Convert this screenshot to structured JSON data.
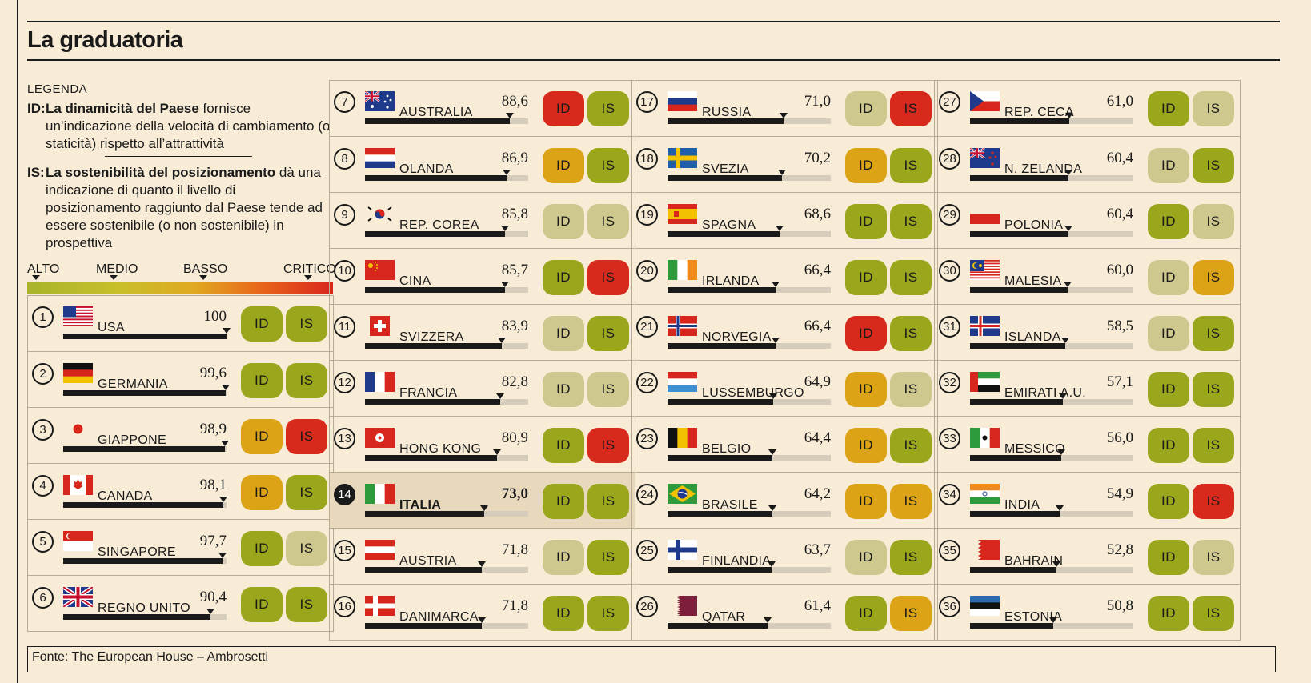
{
  "title": "La graduatoria",
  "legend": {
    "heading": "LEGENDA",
    "id_tag": "ID:",
    "id_bold": "La dinamicità del Paese",
    "id_text": " fornisce un’indicazione della velocità di cambiamento (o staticità) rispetto all’attrattività",
    "is_tag": "IS:",
    "is_bold": "La sostenibilità del posizionamento",
    "is_text": " dà una indicazione di quanto il livello di posizionamento raggiunto dal Paese tende ad essere sostenibile (o non sostenibile) in prospettiva",
    "scale": [
      "ALTO",
      "MEDIO",
      "BASSO",
      "CRITICO"
    ]
  },
  "source": "Fonte: The European House – Ambrosetti",
  "colors": {
    "alto": "#9aa61c",
    "medio": "#cfc88e",
    "basso": "#dca317",
    "critico": "#d72a1c"
  },
  "chart_data": {
    "type": "table",
    "title": "La graduatoria",
    "score_range": [
      0,
      100
    ],
    "level_scale": [
      "ALTO",
      "MEDIO",
      "BASSO",
      "CRITICO"
    ],
    "id_label": "ID",
    "is_label": "IS",
    "rows": [
      {
        "rank": "1",
        "country": "USA",
        "score_text": "100",
        "score": 100,
        "id": "ALTO",
        "is": "ALTO",
        "flag": "usa"
      },
      {
        "rank": "2",
        "country": "GERMANIA",
        "score_text": "99,6",
        "score": 99.6,
        "id": "ALTO",
        "is": "ALTO",
        "flag": "germany"
      },
      {
        "rank": "3",
        "country": "GIAPPONE",
        "score_text": "98,9",
        "score": 98.9,
        "id": "BASSO",
        "is": "CRITICO",
        "flag": "japan"
      },
      {
        "rank": "4",
        "country": "CANADA",
        "score_text": "98,1",
        "score": 98.1,
        "id": "BASSO",
        "is": "ALTO",
        "flag": "canada"
      },
      {
        "rank": "5",
        "country": "SINGAPORE",
        "score_text": "97,7",
        "score": 97.7,
        "id": "ALTO",
        "is": "MEDIO",
        "flag": "singapore"
      },
      {
        "rank": "6",
        "country": "REGNO UNITO",
        "score_text": "90,4",
        "score": 90.4,
        "id": "ALTO",
        "is": "ALTO",
        "flag": "uk"
      },
      {
        "rank": "7",
        "country": "AUSTRALIA",
        "score_text": "88,6",
        "score": 88.6,
        "id": "CRITICO",
        "is": "ALTO",
        "flag": "australia"
      },
      {
        "rank": "8",
        "country": "OLANDA",
        "score_text": "86,9",
        "score": 86.9,
        "id": "BASSO",
        "is": "ALTO",
        "flag": "netherlands"
      },
      {
        "rank": "9",
        "country": "REP. COREA",
        "score_text": "85,8",
        "score": 85.8,
        "id": "MEDIO",
        "is": "MEDIO",
        "flag": "korea"
      },
      {
        "rank": "10",
        "country": "CINA",
        "score_text": "85,7",
        "score": 85.7,
        "id": "ALTO",
        "is": "CRITICO",
        "flag": "china"
      },
      {
        "rank": "11",
        "country": "SVIZZERA",
        "score_text": "83,9",
        "score": 83.9,
        "id": "MEDIO",
        "is": "ALTO",
        "flag": "switzerland"
      },
      {
        "rank": "12",
        "country": "FRANCIA",
        "score_text": "82,8",
        "score": 82.8,
        "id": "MEDIO",
        "is": "MEDIO",
        "flag": "france"
      },
      {
        "rank": "13",
        "country": "HONG KONG",
        "score_text": "80,9",
        "score": 80.9,
        "id": "ALTO",
        "is": "CRITICO",
        "flag": "hongkong"
      },
      {
        "rank": "14",
        "country": "ITALIA",
        "score_text": "73,0",
        "score": 73.0,
        "id": "ALTO",
        "is": "ALTO",
        "flag": "italy",
        "highlight": true
      },
      {
        "rank": "15",
        "country": "AUSTRIA",
        "score_text": "71,8",
        "score": 71.8,
        "id": "MEDIO",
        "is": "ALTO",
        "flag": "austria"
      },
      {
        "rank": "16",
        "country": "DANIMARCA",
        "score_text": "71,8",
        "score": 71.8,
        "id": "ALTO",
        "is": "ALTO",
        "flag": "denmark"
      },
      {
        "rank": "17",
        "country": "RUSSIA",
        "score_text": "71,0",
        "score": 71.0,
        "id": "MEDIO",
        "is": "CRITICO",
        "flag": "russia"
      },
      {
        "rank": "18",
        "country": "SVEZIA",
        "score_text": "70,2",
        "score": 70.2,
        "id": "BASSO",
        "is": "ALTO",
        "flag": "sweden"
      },
      {
        "rank": "19",
        "country": "SPAGNA",
        "score_text": "68,6",
        "score": 68.6,
        "id": "ALTO",
        "is": "ALTO",
        "flag": "spain"
      },
      {
        "rank": "20",
        "country": "IRLANDA",
        "score_text": "66,4",
        "score": 66.4,
        "id": "ALTO",
        "is": "ALTO",
        "flag": "ireland"
      },
      {
        "rank": "21",
        "country": "NORVEGIA",
        "score_text": "66,4",
        "score": 66.4,
        "id": "CRITICO",
        "is": "ALTO",
        "flag": "norway"
      },
      {
        "rank": "22",
        "country": "LUSSEMBURGO",
        "score_text": "64,9",
        "score": 64.9,
        "id": "BASSO",
        "is": "MEDIO",
        "flag": "luxembourg"
      },
      {
        "rank": "23",
        "country": "BELGIO",
        "score_text": "64,4",
        "score": 64.4,
        "id": "BASSO",
        "is": "ALTO",
        "flag": "belgium"
      },
      {
        "rank": "24",
        "country": "BRASILE",
        "score_text": "64,2",
        "score": 64.2,
        "id": "BASSO",
        "is": "BASSO",
        "flag": "brazil"
      },
      {
        "rank": "25",
        "country": "FINLANDIA",
        "score_text": "63,7",
        "score": 63.7,
        "id": "MEDIO",
        "is": "ALTO",
        "flag": "finland"
      },
      {
        "rank": "26",
        "country": "QATAR",
        "score_text": "61,4",
        "score": 61.4,
        "id": "ALTO",
        "is": "BASSO",
        "flag": "qatar"
      },
      {
        "rank": "27",
        "country": "REP. CECA",
        "score_text": "61,0",
        "score": 61.0,
        "id": "ALTO",
        "is": "MEDIO",
        "flag": "czech"
      },
      {
        "rank": "28",
        "country": "N. ZELANDA",
        "score_text": "60,4",
        "score": 60.4,
        "id": "MEDIO",
        "is": "ALTO",
        "flag": "newzealand"
      },
      {
        "rank": "29",
        "country": "POLONIA",
        "score_text": "60,4",
        "score": 60.4,
        "id": "ALTO",
        "is": "MEDIO",
        "flag": "poland"
      },
      {
        "rank": "30",
        "country": "MALESIA",
        "score_text": "60,0",
        "score": 60.0,
        "id": "MEDIO",
        "is": "BASSO",
        "flag": "malaysia"
      },
      {
        "rank": "31",
        "country": "ISLANDA",
        "score_text": "58,5",
        "score": 58.5,
        "id": "MEDIO",
        "is": "ALTO",
        "flag": "iceland"
      },
      {
        "rank": "32",
        "country": "EMIRATI A.U.",
        "score_text": "57,1",
        "score": 57.1,
        "id": "ALTO",
        "is": "ALTO",
        "flag": "uae"
      },
      {
        "rank": "33",
        "country": "MESSICO",
        "score_text": "56,0",
        "score": 56.0,
        "id": "ALTO",
        "is": "ALTO",
        "flag": "mexico"
      },
      {
        "rank": "34",
        "country": "INDIA",
        "score_text": "54,9",
        "score": 54.9,
        "id": "ALTO",
        "is": "CRITICO",
        "flag": "india"
      },
      {
        "rank": "35",
        "country": "BAHRAIN",
        "score_text": "52,8",
        "score": 52.8,
        "id": "ALTO",
        "is": "MEDIO",
        "flag": "bahrain"
      },
      {
        "rank": "36",
        "country": "ESTONIA",
        "score_text": "50,8",
        "score": 50.8,
        "id": "ALTO",
        "is": "ALTO",
        "flag": "estonia"
      }
    ]
  }
}
